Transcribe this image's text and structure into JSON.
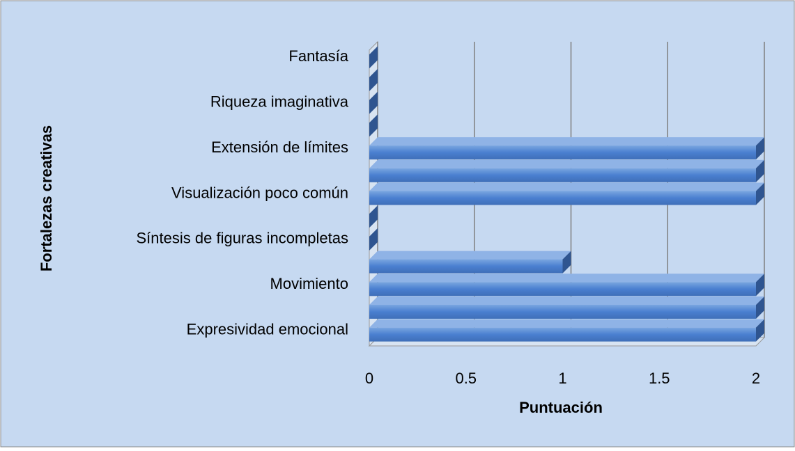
{
  "chart_data": {
    "type": "bar",
    "orientation": "horizontal",
    "x_label": "Puntuación",
    "y_label": "Fortalezas creativas",
    "categories": [
      "Expresividad emocional",
      null,
      "Movimiento",
      null,
      "Síntesis de figuras incompletas",
      null,
      "Visualización poco común",
      null,
      "Extensión de límites",
      null,
      "Riqueza imaginativa",
      null,
      "Fantasía"
    ],
    "values": [
      2,
      2,
      2,
      1,
      0,
      0,
      2,
      2,
      2,
      0,
      0,
      0,
      0
    ],
    "color": "#4f81bd",
    "xlim": [
      0,
      2
    ],
    "xticks": [
      0,
      0.5,
      1,
      1.5,
      2
    ],
    "grid": true
  }
}
